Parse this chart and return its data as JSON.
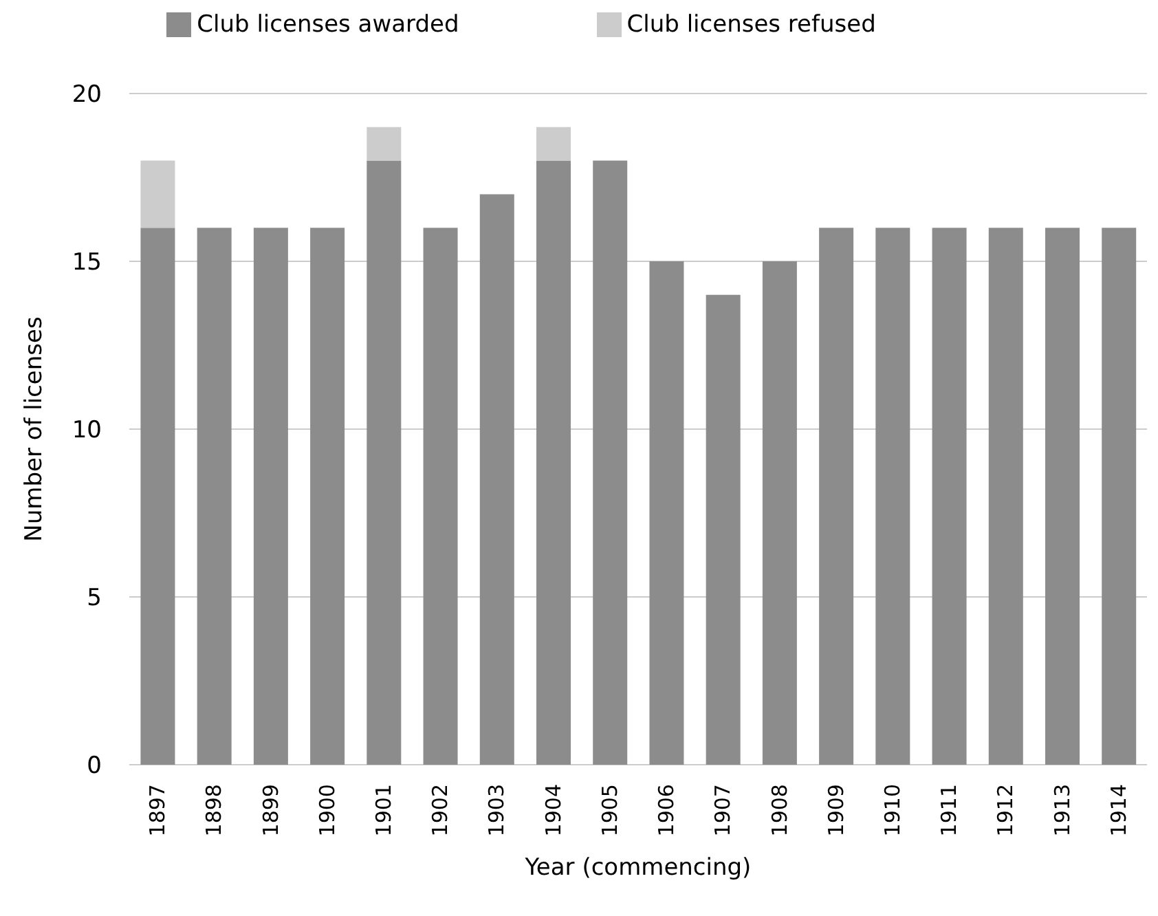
{
  "chart_data": {
    "type": "bar",
    "xlabel": "Year (commencing)",
    "ylabel": "Number of licenses",
    "categories": [
      "1897",
      "1898",
      "1899",
      "1900",
      "1901",
      "1902",
      "1903",
      "1904",
      "1905",
      "1906",
      "1907",
      "1908",
      "1909",
      "1910",
      "1911",
      "1912",
      "1913",
      "1914"
    ],
    "series": [
      {
        "name": "Club licenses awarded",
        "color": "#8c8c8c",
        "values": [
          16,
          16,
          16,
          16,
          18,
          16,
          17,
          18,
          18,
          15,
          14,
          15,
          16,
          16,
          16,
          16,
          16,
          16
        ]
      },
      {
        "name": "Club licenses refused",
        "color": "#cccccc",
        "values": [
          2,
          null,
          null,
          null,
          1,
          null,
          null,
          1,
          null,
          null,
          null,
          null,
          null,
          null,
          null,
          null,
          null,
          null
        ]
      }
    ],
    "stacked": true,
    "ylim": [
      0,
      20
    ],
    "yticks": [
      0,
      5,
      10,
      15,
      20
    ],
    "grid": "y",
    "legend": "top"
  }
}
